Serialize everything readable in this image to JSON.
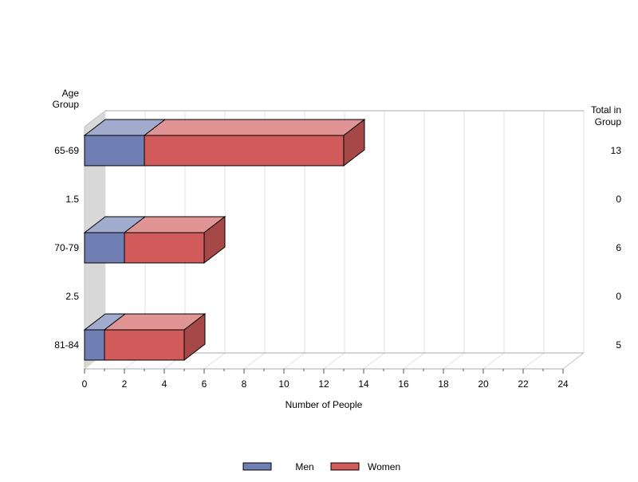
{
  "chart_data": {
    "type": "bar",
    "orientation": "horizontal",
    "stacked": true,
    "style": "3d",
    "categories": [
      "65-69",
      "1.5",
      "70-79",
      "2.5",
      "81-84"
    ],
    "series": [
      {
        "name": "Men",
        "values": [
          3,
          0,
          2,
          0,
          1
        ],
        "color": "#6f7fb3"
      },
      {
        "name": "Women",
        "values": [
          10,
          0,
          4,
          0,
          4
        ],
        "color": "#d15b5b"
      }
    ],
    "totals": [
      13,
      0,
      6,
      0,
      5
    ],
    "xlabel": "Number of People",
    "ylabel": "Age Group",
    "right_label": "Total in Group",
    "xlim": [
      0,
      24
    ],
    "xticks": [
      0,
      2,
      4,
      6,
      8,
      10,
      12,
      14,
      16,
      18,
      20,
      22,
      24
    ],
    "grid": true,
    "legend_position": "bottom"
  }
}
